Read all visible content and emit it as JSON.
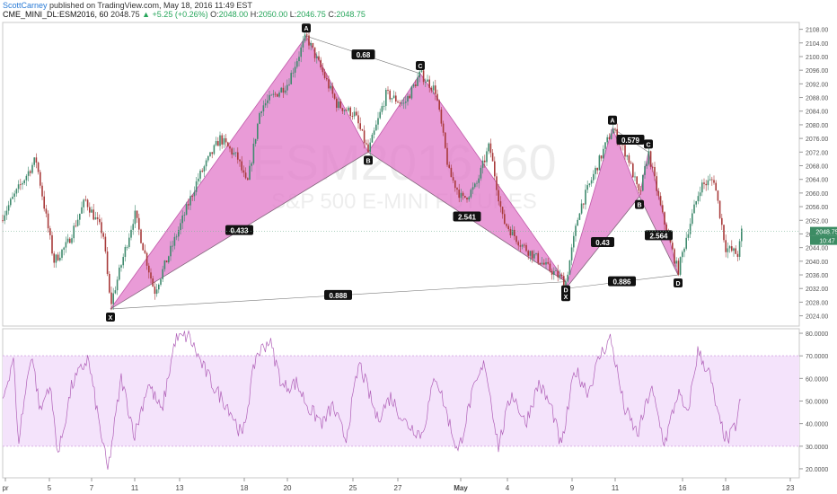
{
  "header": {
    "author": "ScottCarney",
    "published": "published on TradingView.com, May 18, 2016 11:49 EST",
    "symbol": "CME_MINI_DL:ESM2016, 60",
    "last": "2048.75",
    "change": "▲ +5.25 (+0.26%)",
    "o_label": "O:",
    "o": "2048.00",
    "h_label": "H:",
    "h": "2050.00",
    "l_label": "L:",
    "l": "2046.75",
    "c_label": "C:",
    "c": "2048.75"
  },
  "watermark": {
    "main": "ESM2016, 60",
    "sub": "S&P 500 E-MINI FUTURES"
  },
  "colors": {
    "pattern_fill": "#e27ac9",
    "pattern_stroke": "#c05aa9",
    "rsi_line": "#b060b8",
    "rsi_band": "#f4e3fb",
    "up": "#3f8a6e",
    "down": "#a83a3a",
    "price_tag": "#3c8c64"
  },
  "chart_data": [
    {
      "type": "candlestick",
      "title": "CME_MINI_DL:ESM2016, 60",
      "y_ticks": [
        "2108.00",
        "2104.00",
        "2100.00",
        "2096.00",
        "2092.00",
        "2088.00",
        "2084.00",
        "2080.00",
        "2076.00",
        "2072.00",
        "2068.00",
        "2064.00",
        "2060.00",
        "2056.00",
        "2052.00",
        "2048.00",
        "2044.00",
        "2040.00",
        "2036.00",
        "2032.00",
        "2028.00",
        "2024.00"
      ],
      "ylim": [
        2021,
        2110
      ],
      "x_ticks": [
        "pr",
        "5",
        "7",
        "11",
        "13",
        "18",
        "20",
        "25",
        "27",
        "May",
        "4",
        "9",
        "11",
        "16",
        "18",
        "23"
      ],
      "last_price_tag": "2048.75",
      "countdown_tag": "10:47",
      "path": [
        [
          0,
          2052
        ],
        [
          40,
          2070
        ],
        [
          60,
          2040
        ],
        [
          75,
          2045
        ],
        [
          95,
          2058
        ],
        [
          115,
          2048
        ],
        [
          123,
          2027
        ],
        [
          150,
          2054
        ],
        [
          172,
          2031
        ],
        [
          200,
          2050
        ],
        [
          220,
          2064
        ],
        [
          245,
          2076
        ],
        [
          265,
          2070
        ],
        [
          275,
          2062
        ],
        [
          290,
          2085
        ],
        [
          320,
          2092
        ],
        [
          341,
          2106
        ],
        [
          360,
          2095
        ],
        [
          375,
          2086
        ],
        [
          395,
          2083
        ],
        [
          410,
          2072
        ],
        [
          430,
          2089
        ],
        [
          450,
          2086
        ],
        [
          468,
          2095
        ],
        [
          485,
          2090
        ],
        [
          500,
          2066
        ],
        [
          515,
          2058
        ],
        [
          530,
          2062
        ],
        [
          545,
          2074
        ],
        [
          560,
          2052
        ],
        [
          580,
          2045
        ],
        [
          610,
          2038
        ],
        [
          630,
          2034
        ],
        [
          645,
          2055
        ],
        [
          665,
          2068
        ],
        [
          682,
          2079
        ],
        [
          700,
          2070
        ],
        [
          712,
          2059
        ],
        [
          722,
          2072
        ],
        [
          738,
          2053
        ],
        [
          755,
          2037
        ],
        [
          765,
          2048
        ],
        [
          780,
          2062
        ],
        [
          795,
          2064
        ],
        [
          808,
          2044
        ],
        [
          822,
          2042
        ],
        [
          826,
          2049
        ]
      ],
      "patterns": [
        {
          "name": "pattern-1",
          "points": {
            "X": [
              123,
              2026
            ],
            "A": [
              341,
              2106
            ],
            "B": [
              410,
              2072
            ],
            "C": [
              468,
              2095
            ],
            "D": [
              630,
              2034
            ]
          },
          "point_labels": [
            "X",
            "A",
            "B",
            "C",
            "D"
          ],
          "ratios": [
            {
              "text": "0.433",
              "between": "X-B"
            },
            {
              "text": "0.68",
              "between": "A-C"
            },
            {
              "text": "2.541",
              "between": "B-D"
            },
            {
              "text": "0.888",
              "between": "X-D"
            }
          ]
        },
        {
          "name": "pattern-2",
          "points": {
            "X": [
              630,
              2032
            ],
            "A": [
              682,
              2079
            ],
            "B": [
              712,
              2059
            ],
            "C": [
              722,
              2072
            ],
            "D": [
              755,
              2036
            ]
          },
          "point_labels": [
            "X",
            "A",
            "B",
            "C",
            "D"
          ],
          "ratios": [
            {
              "text": "0.43",
              "between": "X-B"
            },
            {
              "text": "0.579",
              "between": "A-C"
            },
            {
              "text": "2.564",
              "between": "B-D"
            },
            {
              "text": "0.886",
              "between": "X-D"
            }
          ]
        }
      ]
    },
    {
      "type": "line",
      "title": "",
      "y_ticks": [
        "80.0000",
        "70.0000",
        "60.0000",
        "50.0000",
        "40.0000",
        "30.0000",
        "20.0000"
      ],
      "ylim": [
        16,
        82
      ],
      "band": [
        30,
        70
      ],
      "path": [
        [
          0,
          45
        ],
        [
          15,
          70
        ],
        [
          20,
          31
        ],
        [
          35,
          72
        ],
        [
          45,
          45
        ],
        [
          55,
          58
        ],
        [
          65,
          26
        ],
        [
          80,
          57
        ],
        [
          98,
          69
        ],
        [
          110,
          41
        ],
        [
          120,
          19
        ],
        [
          135,
          60
        ],
        [
          150,
          35
        ],
        [
          165,
          58
        ],
        [
          180,
          45
        ],
        [
          195,
          77
        ],
        [
          210,
          79
        ],
        [
          225,
          66
        ],
        [
          240,
          55
        ],
        [
          255,
          47
        ],
        [
          270,
          34
        ],
        [
          285,
          70
        ],
        [
          300,
          77
        ],
        [
          315,
          56
        ],
        [
          330,
          58
        ],
        [
          345,
          46
        ],
        [
          360,
          40
        ],
        [
          370,
          48
        ],
        [
          385,
          33
        ],
        [
          400,
          67
        ],
        [
          420,
          42
        ],
        [
          435,
          52
        ],
        [
          450,
          41
        ],
        [
          470,
          35
        ],
        [
          485,
          62
        ],
        [
          500,
          41
        ],
        [
          510,
          27
        ],
        [
          525,
          52
        ],
        [
          540,
          67
        ],
        [
          555,
          30
        ],
        [
          570,
          54
        ],
        [
          585,
          40
        ],
        [
          600,
          58
        ],
        [
          615,
          46
        ],
        [
          625,
          29
        ],
        [
          640,
          64
        ],
        [
          655,
          54
        ],
        [
          668,
          70
        ],
        [
          680,
          78
        ],
        [
          695,
          47
        ],
        [
          710,
          35
        ],
        [
          725,
          56
        ],
        [
          740,
          31
        ],
        [
          755,
          54
        ],
        [
          765,
          43
        ],
        [
          777,
          72
        ],
        [
          790,
          62
        ],
        [
          800,
          42
        ],
        [
          810,
          32
        ],
        [
          820,
          40
        ],
        [
          826,
          54
        ]
      ]
    }
  ]
}
